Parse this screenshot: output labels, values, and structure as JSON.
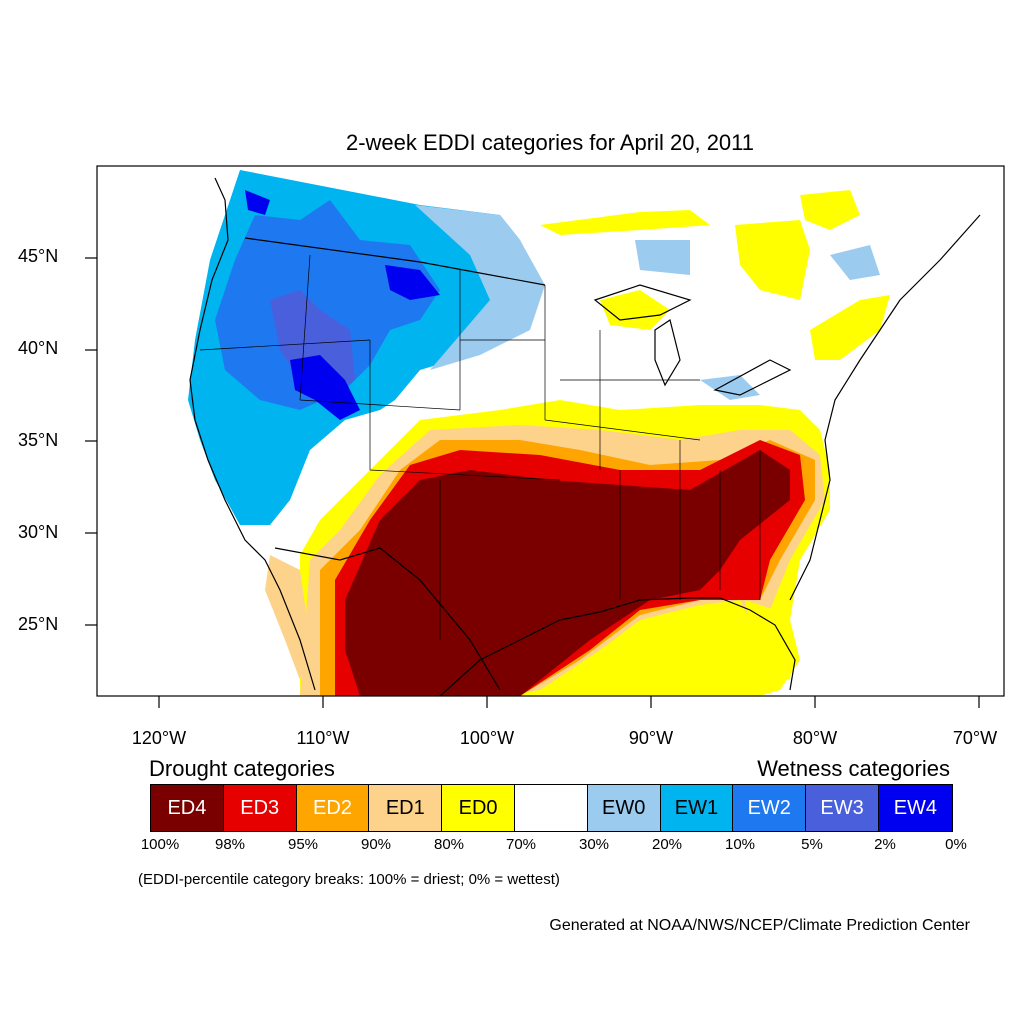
{
  "title": "2-week EDDI categories for April 20, 2011",
  "axes": {
    "lat_labels": [
      "45°N",
      "40°N",
      "35°N",
      "30°N",
      "25°N"
    ],
    "lon_labels": [
      "120°W",
      "110°W",
      "100°W",
      "90°W",
      "80°W",
      "70°W"
    ]
  },
  "legend": {
    "drought_heading": "Drought categories",
    "wetness_heading": "Wetness categories",
    "categories": [
      {
        "label": "ED4",
        "color": "#7a0000",
        "text_color": "#ffffff"
      },
      {
        "label": "ED3",
        "color": "#e60000",
        "text_color": "#ffffff"
      },
      {
        "label": "ED2",
        "color": "#ffa500",
        "text_color": "#ffffff"
      },
      {
        "label": "ED1",
        "color": "#fdd28a",
        "text_color": "#000000"
      },
      {
        "label": "ED0",
        "color": "#ffff00",
        "text_color": "#000000"
      },
      {
        "label": "",
        "color": "#ffffff",
        "text_color": "#000000"
      },
      {
        "label": "EW0",
        "color": "#9ccbf0",
        "text_color": "#000000"
      },
      {
        "label": "EW1",
        "color": "#00b4f0",
        "text_color": "#000000"
      },
      {
        "label": "EW2",
        "color": "#1e78f0",
        "text_color": "#ffffff"
      },
      {
        "label": "EW3",
        "color": "#4a5fdc",
        "text_color": "#ffffff"
      },
      {
        "label": "EW4",
        "color": "#0000f0",
        "text_color": "#ffffff"
      }
    ],
    "breaks": [
      "100%",
      "98%",
      "95%",
      "90%",
      "80%",
      "70%",
      "30%",
      "20%",
      "10%",
      "5%",
      "2%",
      "0%"
    ]
  },
  "note": "(EDDI-percentile category breaks: 100% = driest; 0% = wettest)",
  "credit": "Generated at NOAA/NWS/NCEP/Climate Prediction Center"
}
